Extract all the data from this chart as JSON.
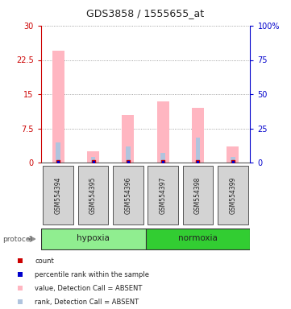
{
  "title": "GDS3858 / 1555655_at",
  "samples": [
    "GSM554394",
    "GSM554395",
    "GSM554396",
    "GSM554397",
    "GSM554398",
    "GSM554399"
  ],
  "groups": [
    {
      "name": "hypoxia",
      "color": "#90ee90",
      "samples": [
        0,
        1,
        2
      ]
    },
    {
      "name": "normoxia",
      "color": "#32cd32",
      "samples": [
        3,
        4,
        5
      ]
    }
  ],
  "value_bars": [
    24.5,
    2.5,
    10.5,
    13.5,
    12.0,
    3.5
  ],
  "rank_bars": [
    4.5,
    1.2,
    3.5,
    2.2,
    5.5,
    1.2
  ],
  "ylim_left": [
    0,
    30
  ],
  "ylim_right": [
    0,
    100
  ],
  "yticks_left": [
    0,
    7.5,
    15,
    22.5,
    30
  ],
  "yticks_right": [
    0,
    25,
    50,
    75,
    100
  ],
  "ytick_labels_left": [
    "0",
    "7.5",
    "15",
    "22.5",
    "30"
  ],
  "ytick_labels_right": [
    "0",
    "25",
    "50",
    "75",
    "100%"
  ],
  "left_axis_color": "#cc0000",
  "right_axis_color": "#0000cc",
  "bar_color_value": "#ffb6c1",
  "bar_color_rank": "#b0c4de",
  "marker_color_count": "#cc0000",
  "marker_color_rank": "#0000cc",
  "bg_color": "#ffffff",
  "grid_color": "#888888",
  "sample_box_color": "#d3d3d3",
  "legend_items": [
    {
      "label": "count",
      "color": "#cc0000"
    },
    {
      "label": "percentile rank within the sample",
      "color": "#0000cc"
    },
    {
      "label": "value, Detection Call = ABSENT",
      "color": "#ffb6c1"
    },
    {
      "label": "rank, Detection Call = ABSENT",
      "color": "#b0c4de"
    }
  ],
  "protocol_label": "protocol",
  "arrow_color": "#909090"
}
